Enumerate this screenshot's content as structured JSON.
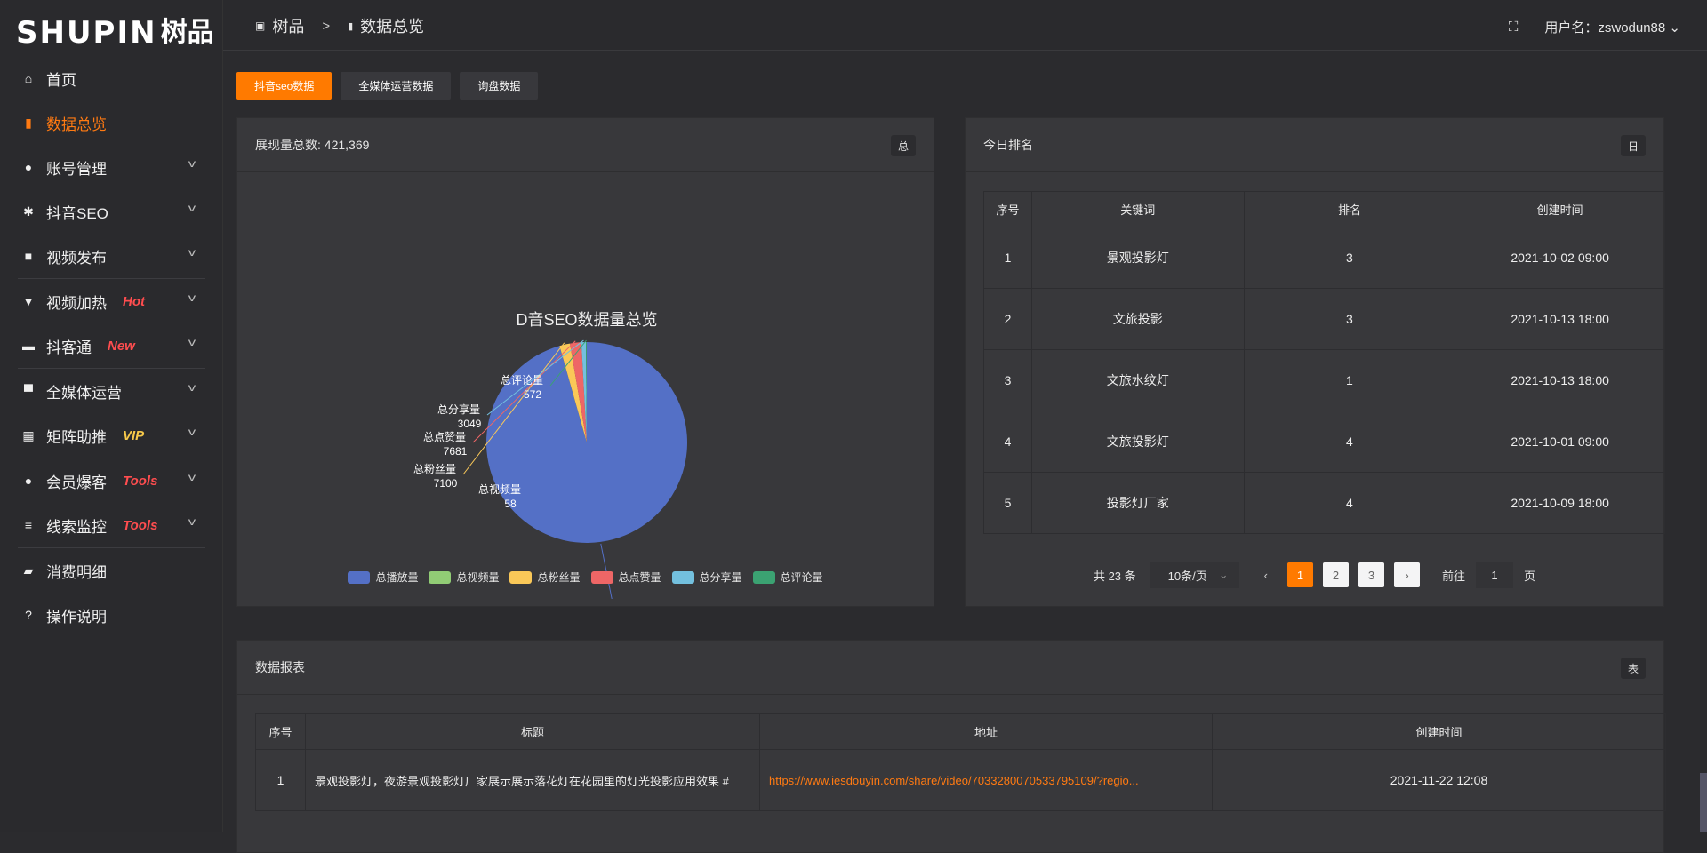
{
  "logo": {
    "en": "SHUPIN",
    "cn": "树品"
  },
  "sidebar": {
    "items": [
      {
        "label": "首页",
        "icon": "home-icon",
        "glyph": "⌂"
      },
      {
        "label": "数据总览",
        "icon": "bar-chart-icon",
        "glyph": "▮",
        "active": true
      },
      {
        "label": "账号管理",
        "icon": "user-icon",
        "glyph": "●",
        "chev": true
      },
      {
        "label": "抖音SEO",
        "icon": "gear-icon",
        "glyph": "✱",
        "chev": true
      },
      {
        "label": "视频发布",
        "icon": "camera-icon",
        "glyph": "■",
        "chev": true,
        "sep": true
      },
      {
        "label": "视频加热",
        "icon": "monitor-icon",
        "glyph": "▼",
        "chev": true,
        "tag": "Hot",
        "tagColor": "#ff4d4f"
      },
      {
        "label": "抖客通",
        "icon": "chat-icon",
        "glyph": "▬",
        "chev": true,
        "tag": "New",
        "tagColor": "#ff4d4f",
        "sep": true
      },
      {
        "label": "全媒体运营",
        "icon": "desktop-icon",
        "glyph": "▀",
        "chev": true
      },
      {
        "label": "矩阵助推",
        "icon": "grid-icon",
        "glyph": "▦",
        "chev": true,
        "tag": "VIP",
        "tagColor": "#f7c94a",
        "sep": true
      },
      {
        "label": "会员爆客",
        "icon": "member-icon",
        "glyph": "●",
        "chev": true,
        "tag": "Tools",
        "tagColor": "#ff4d4f"
      },
      {
        "label": "线索监控",
        "icon": "sliders-icon",
        "glyph": "≡",
        "chev": true,
        "tag": "Tools",
        "tagColor": "#ff4d4f",
        "sep": true
      },
      {
        "label": "消费明细",
        "icon": "wallet-icon",
        "glyph": "▰"
      },
      {
        "label": "操作说明",
        "icon": "help-icon",
        "glyph": "?"
      }
    ]
  },
  "header": {
    "crumb_home": "树品",
    "crumb_sep": ">",
    "crumb_current": "数据总览",
    "username": "用户名：zswodun88"
  },
  "tabs": [
    "抖音seo数据",
    "全媒体运营数据",
    "询盘数据"
  ],
  "overview": {
    "title": "展现量总数: 421,369",
    "badge": "总"
  },
  "chart_data": {
    "type": "pie",
    "title": "D音SEO数据量总览",
    "legend_position": "bottom",
    "slices": [
      {
        "name": "总播放量",
        "value": 402909,
        "color": "#5470c6"
      },
      {
        "name": "总视频量",
        "value": 58,
        "color": "#91cc75"
      },
      {
        "name": "总粉丝量",
        "value": 7100,
        "color": "#fac858"
      },
      {
        "name": "总点赞量",
        "value": 7681,
        "color": "#ee6666"
      },
      {
        "name": "总分享量",
        "value": 3049,
        "color": "#73c0de"
      },
      {
        "name": "总评论量",
        "value": 572,
        "color": "#3ba272"
      }
    ]
  },
  "ranking": {
    "title": "今日排名",
    "badge": "日",
    "columns": [
      "序号",
      "关键词",
      "排名",
      "创建时间"
    ],
    "rows": [
      [
        "1",
        "景观投影灯",
        "3",
        "2021-10-02 09:00"
      ],
      [
        "2",
        "文旅投影",
        "3",
        "2021-10-13 18:00"
      ],
      [
        "3",
        "文旅水纹灯",
        "1",
        "2021-10-13 18:00"
      ],
      [
        "4",
        "文旅投影灯",
        "4",
        "2021-10-01 09:00"
      ],
      [
        "5",
        "投影灯厂家",
        "4",
        "2021-10-09 18:00"
      ]
    ],
    "pagination": {
      "total": "共 23 条",
      "page_size": "10条/页",
      "pages": [
        "1",
        "2",
        "3"
      ],
      "current": "1",
      "goto_label": "前往",
      "goto_value": "1",
      "page_unit": "页"
    }
  },
  "report": {
    "title": "数据报表",
    "badge": "表",
    "columns": [
      "序号",
      "标题",
      "地址",
      "创建时间"
    ],
    "rows": [
      [
        "1",
        "景观投影灯，夜游景观投影灯厂家展示展示落花灯在花园里的灯光投影应用效果 #",
        "https://www.iesdouyin.com/share/video/7033280070533795109/?regio...",
        "2021-11-22 12:08"
      ]
    ]
  },
  "colors": {
    "accent": "#ff7a00",
    "bg": "#2b2b2e",
    "card": "#38383b"
  }
}
